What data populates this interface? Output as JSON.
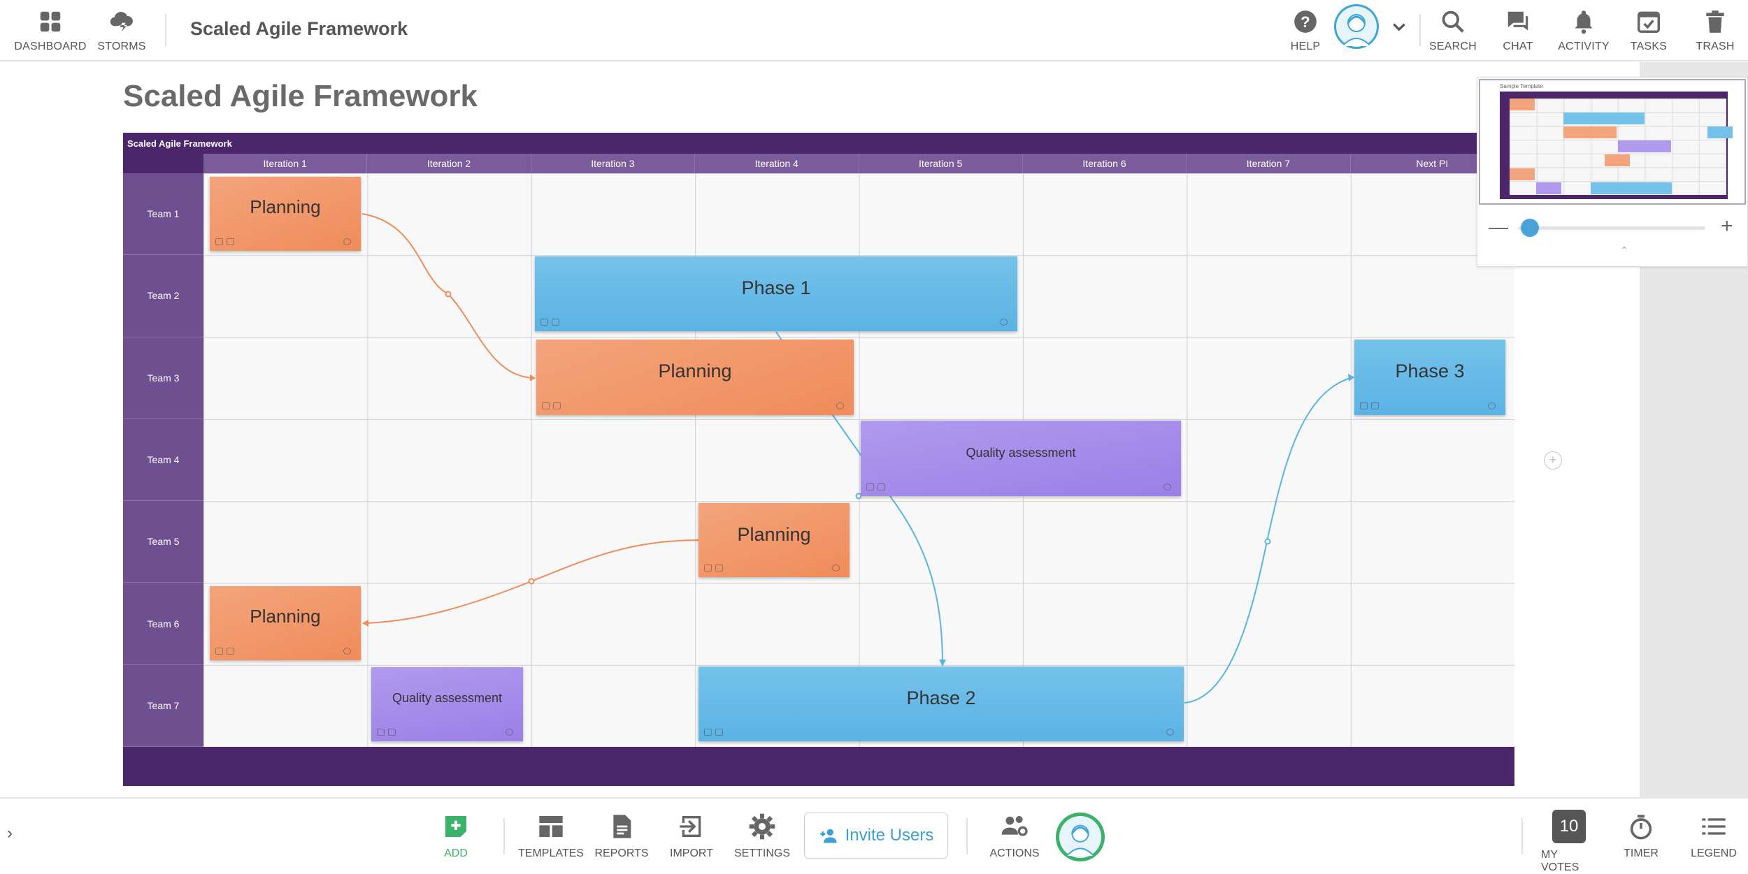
{
  "topbar": {
    "dashboard_label": "DASHBOARD",
    "storms_label": "STORMS",
    "app_title": "Scaled Agile Framework",
    "help_label": "HELP",
    "search_label": "SEARCH",
    "chat_label": "CHAT",
    "activity_label": "ACTIVITY",
    "tasks_label": "TASKS",
    "trash_label": "TRASH"
  },
  "board": {
    "heading": "Scaled Agile Framework",
    "grid_title": "Scaled Agile Framework",
    "columns": [
      "Iteration 1",
      "Iteration 2",
      "Iteration 3",
      "Iteration 4",
      "Iteration 5",
      "Iteration 6",
      "Iteration 7",
      "Next PI"
    ],
    "rows": [
      "Team 1",
      "Team 2",
      "Team 3",
      "Team 4",
      "Team 5",
      "Team 6",
      "Team 7"
    ],
    "cards": [
      {
        "text": "Planning",
        "color": "orange"
      },
      {
        "text": "Phase 1",
        "color": "blue"
      },
      {
        "text": "Planning",
        "color": "orange"
      },
      {
        "text": "Phase 3",
        "color": "blue"
      },
      {
        "text": "Quality assessment",
        "color": "purple"
      },
      {
        "text": "Planning",
        "color": "orange"
      },
      {
        "text": "Planning",
        "color": "orange"
      },
      {
        "text": "Quality assessment",
        "color": "purple"
      },
      {
        "text": "Phase 2",
        "color": "blue"
      }
    ]
  },
  "minimap": {
    "label": "Sample Template"
  },
  "bottombar": {
    "add_label": "ADD",
    "templates_label": "TEMPLATES",
    "reports_label": "REPORTS",
    "import_label": "IMPORT",
    "settings_label": "SETTINGS",
    "invite_label": "Invite Users",
    "actions_label": "ACTIONS",
    "votes_count": "10",
    "votes_label": "MY VOTES",
    "timer_label": "TIMER",
    "legend_label": "LEGEND"
  },
  "colors": {
    "grid_purple": "#4b266a",
    "card_orange": "#f08c5a",
    "card_blue": "#5bb3e4",
    "card_purple": "#9b7fe6",
    "add_green": "#3ab26a",
    "invite_blue": "#3d9fd6"
  }
}
